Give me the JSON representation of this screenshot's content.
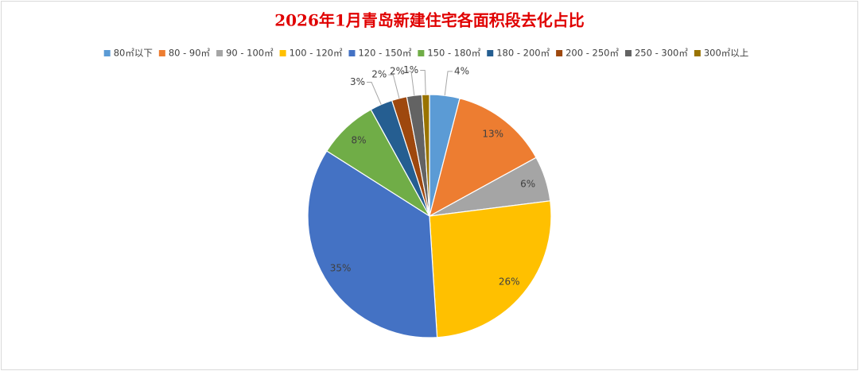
{
  "chart_data": {
    "type": "pie",
    "title": "2026年1月青岛新建住宅各面积段去化占比",
    "categories": [
      "80㎡以下",
      "80 - 90㎡",
      "90 - 100㎡",
      "100 - 120㎡",
      "120 - 150㎡",
      "150 - 180㎡",
      "180 - 200㎡",
      "200 - 250㎡",
      "250 - 300㎡",
      "300㎡以上"
    ],
    "values": [
      4,
      13,
      6,
      26,
      35,
      8,
      3,
      2,
      2,
      1
    ],
    "value_labels": [
      "4%",
      "13%",
      "6%",
      "26%",
      "35%",
      "8%",
      "3%",
      "2%",
      "2%",
      "1%"
    ],
    "colors": [
      "#5b9bd5",
      "#ed7d31",
      "#a5a5a5",
      "#ffc000",
      "#4472c4",
      "#70ad47",
      "#255e91",
      "#9e480e",
      "#636363",
      "#997300"
    ],
    "legend": "top"
  }
}
